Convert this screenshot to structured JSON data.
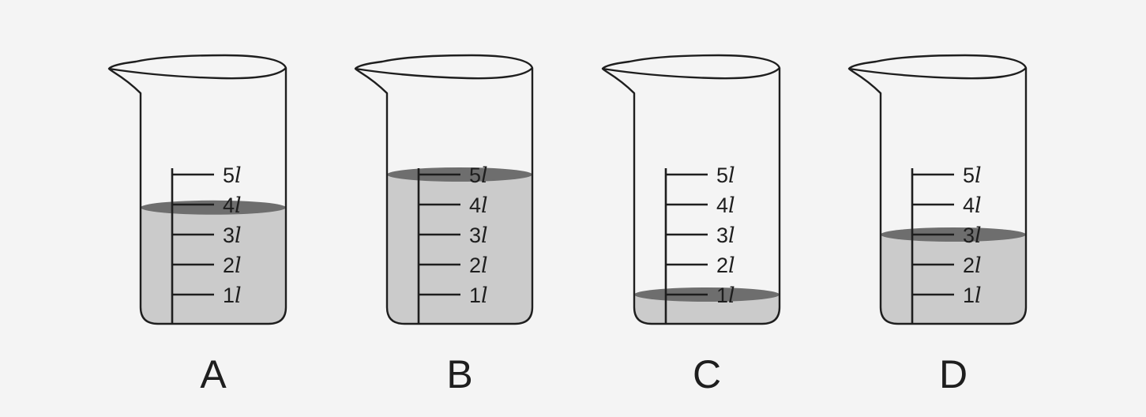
{
  "diagram": {
    "unit": "l",
    "capacity_marks": [
      1,
      2,
      3,
      4,
      5
    ],
    "beakers": [
      {
        "label": "A",
        "water_level": 3.9
      },
      {
        "label": "B",
        "water_level": 5.0
      },
      {
        "label": "C",
        "water_level": 1.0
      },
      {
        "label": "D",
        "water_level": 3.0
      }
    ],
    "colors": {
      "outline": "#1e1e1e",
      "water": "#cbcbcb",
      "water_surface": "#6e6e6e",
      "background": "#f4f4f4"
    }
  }
}
